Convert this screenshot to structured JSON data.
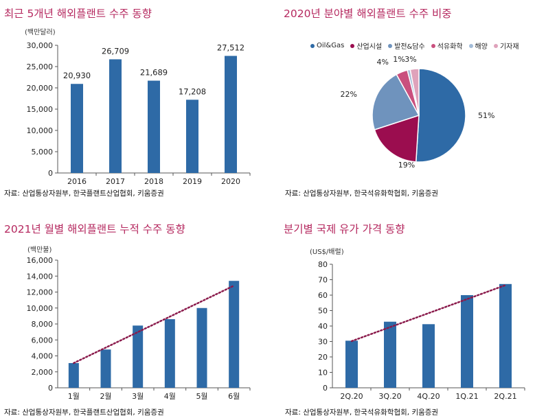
{
  "panels": [
    {
      "title": "최근 5개년 해외플랜트 수주 동향",
      "unit": "(백만달러)",
      "source": "자료: 산업통상자원부, 한국플랜트산업협회, 키움증권"
    },
    {
      "title": "2020년 분야별 해외플랜트 수주 비중",
      "unit": "",
      "source": "자료: 산업통상자원부, 한국석유화학협회, 키움증권"
    },
    {
      "title": "2021년 월별 해외플랜트 누적 수주 동향",
      "unit": "(백만불)",
      "source": "자료: 산업통상자원부, 한국플랜트산업협회, 키움증권"
    },
    {
      "title": "분기별 국제 유가 가격 동향",
      "unit": "(US$/배럴)",
      "source": "자료: 산업통상자원부, 한국석유화학협회, 키움증권"
    }
  ],
  "chart_data": [
    {
      "type": "bar",
      "title": "최근 5개년 해외플랜트 수주 동향",
      "ylabel": "(백만달러)",
      "categories": [
        "2016",
        "2017",
        "2018",
        "2019",
        "2020"
      ],
      "values": [
        20930,
        26709,
        21689,
        17208,
        27512
      ],
      "value_labels": [
        "20,930",
        "26,709",
        "21,689",
        "17,208",
        "27,512"
      ],
      "ylim": [
        0,
        30000
      ],
      "yticks": [
        0,
        5000,
        10000,
        15000,
        20000,
        25000,
        30000
      ],
      "ytick_labels": [
        "0",
        "5,000",
        "10,000",
        "15,000",
        "20,000",
        "25,000",
        "30,000"
      ],
      "color": "#2e6aa6"
    },
    {
      "type": "pie",
      "title": "2020년 분야별 해외플랜트 수주 비중",
      "legend_position": "top",
      "labels": [
        "Oil&Gas",
        "산업시설",
        "발전&담수",
        "석유화학",
        "해양",
        "기자재"
      ],
      "values": [
        51,
        19,
        22,
        4,
        1,
        3
      ],
      "value_labels": [
        "51%",
        "19%",
        "22%",
        "4%",
        "1%",
        "3%"
      ],
      "colors": [
        "#2e6aa6",
        "#9b0d4f",
        "#6f93bd",
        "#c9507e",
        "#a3bcd8",
        "#dfa2bb"
      ]
    },
    {
      "type": "bar",
      "title": "2021년 월별 해외플랜트 누적 수주 동향",
      "ylabel": "(백만불)",
      "categories": [
        "1월",
        "2월",
        "3월",
        "4월",
        "5월",
        "6월"
      ],
      "values": [
        3100,
        4800,
        7800,
        8600,
        10000,
        13400
      ],
      "ylim": [
        0,
        16000
      ],
      "yticks": [
        0,
        2000,
        4000,
        6000,
        8000,
        10000,
        12000,
        14000,
        16000
      ],
      "ytick_labels": [
        "0",
        "2,000",
        "4,000",
        "6,000",
        "8,000",
        "10,000",
        "12,000",
        "14,000",
        "16,000"
      ],
      "trendline": true,
      "color": "#2e6aa6",
      "trend_color": "#8a1a4b"
    },
    {
      "type": "bar",
      "title": "분기별 국제 유가 가격 동향",
      "ylabel": "(US$/배럴)",
      "categories": [
        "2Q.20",
        "3Q.20",
        "4Q.20",
        "1Q.21",
        "2Q.21"
      ],
      "values": [
        30.5,
        42.8,
        41.2,
        60.0,
        67.2
      ],
      "ylim": [
        0,
        80
      ],
      "yticks": [
        0,
        10,
        20,
        30,
        40,
        50,
        60,
        70,
        80
      ],
      "ytick_labels": [
        "0",
        "10",
        "20",
        "30",
        "40",
        "50",
        "60",
        "70",
        "80"
      ],
      "trendline": true,
      "color": "#2e6aa6",
      "trend_color": "#8a1a4b"
    }
  ]
}
